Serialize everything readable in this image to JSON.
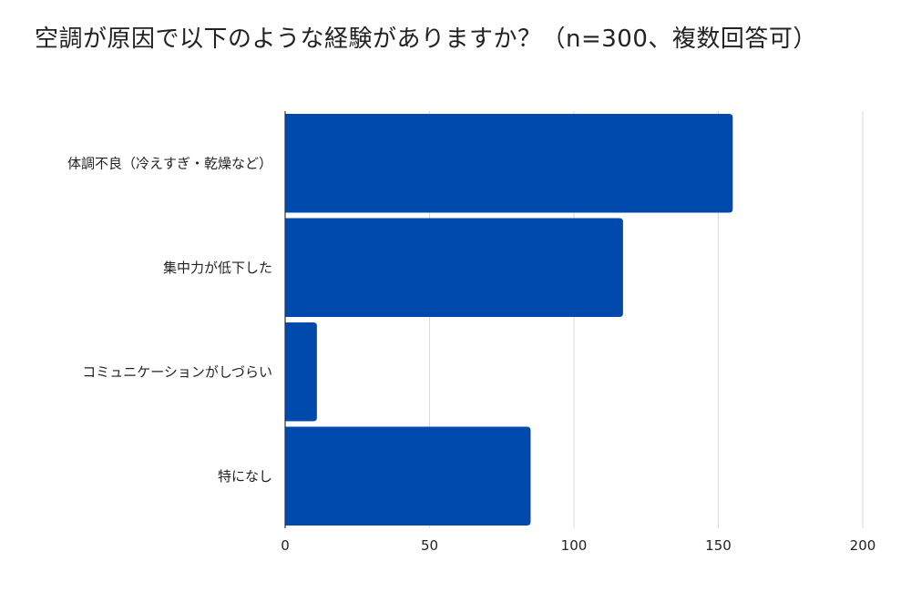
{
  "title": "空調が原因で以下のような経験がありますか？（n=300、複数回答可）",
  "colors": {
    "bar": "#004AAD",
    "grid": "#D9D9D9",
    "axis": "#333333",
    "text": "#222222"
  },
  "chart_data": {
    "type": "bar",
    "orientation": "horizontal",
    "title": "空調が原因で以下のような経験がありますか？（n=300、複数回答可）",
    "categories": [
      "体調不良（冷えすぎ・乾燥など）",
      "集中力が低下した",
      "コミュニケーションがしづらい",
      "特になし"
    ],
    "values": [
      155,
      117,
      11,
      85
    ],
    "xlim": [
      0,
      200
    ],
    "xticks": [
      "0",
      "50",
      "100",
      "150",
      "200"
    ],
    "xlabel": "",
    "ylabel": "",
    "grid": true,
    "legend": "none"
  }
}
